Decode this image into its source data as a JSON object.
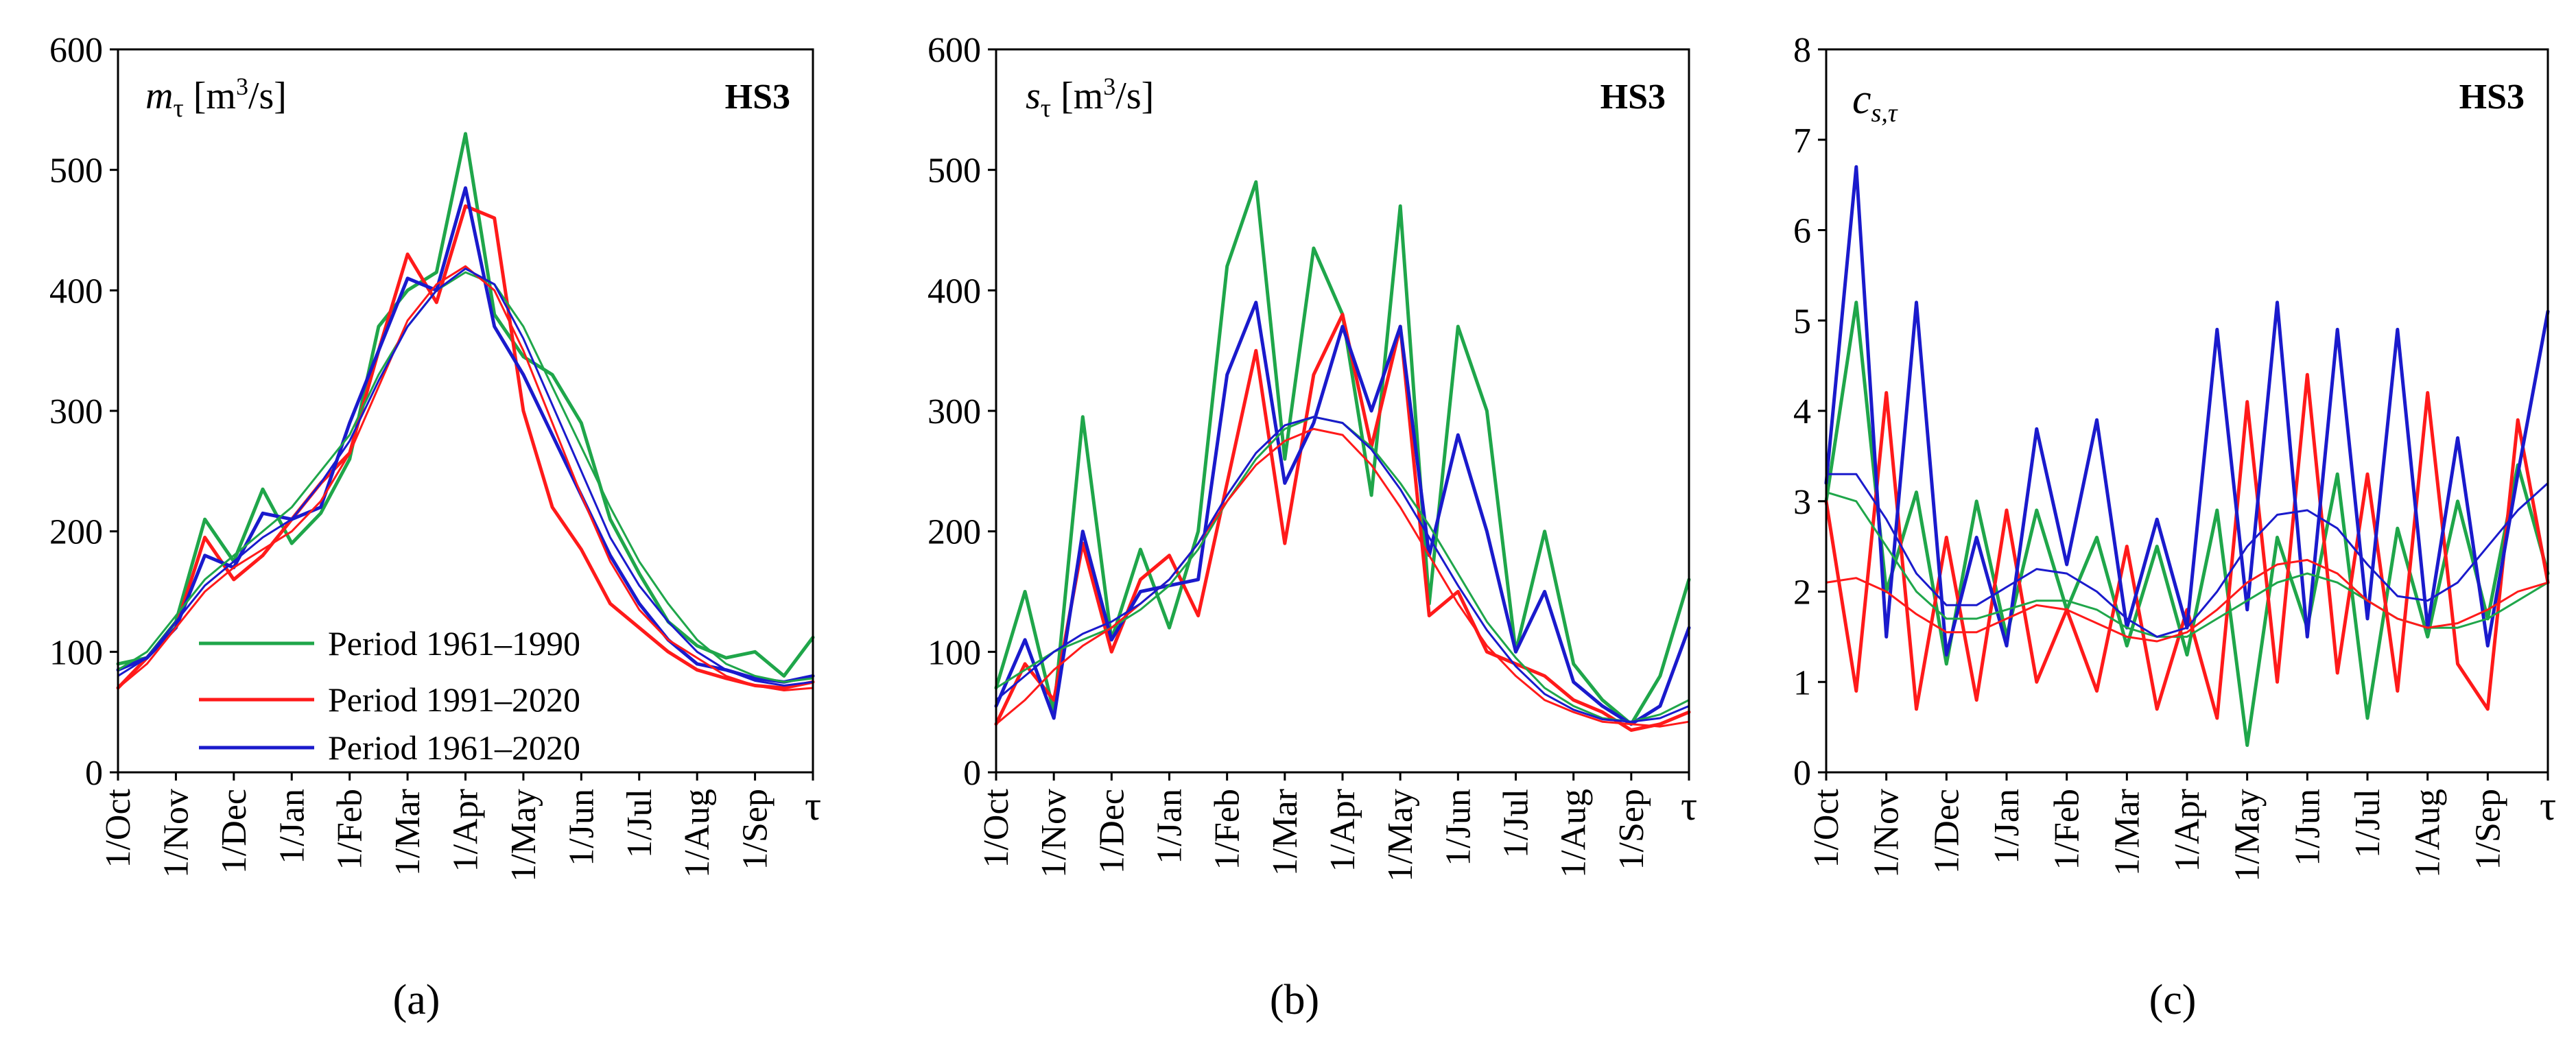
{
  "figure": {
    "captions": [
      "(a)",
      "(b)",
      "(c)"
    ],
    "legend": [
      {
        "label": "Period 1961–1990",
        "color": "#1fa64a"
      },
      {
        "label": "Period 1991–2020",
        "color": "#ff1a1a"
      },
      {
        "label": "Period 1961–2020",
        "color": "#1a1acc"
      }
    ]
  },
  "chart_data": [
    {
      "type": "line",
      "panel": "a",
      "title": "HS3",
      "ylabel_symbol": "m",
      "ylabel_sub": "τ",
      "ylabel_unit_pre": "[m",
      "ylabel_unit_sup": "3",
      "ylabel_unit_post": "/s]",
      "xlabel": "τ",
      "ylim": [
        0,
        600
      ],
      "yticks": [
        "0",
        "100",
        "200",
        "300",
        "400",
        "500",
        "600"
      ],
      "xticks": [
        "1/Oct",
        "1/Nov",
        "1/Dec",
        "1/Jan",
        "1/Feb",
        "1/Mar",
        "1/Apr",
        "1/May",
        "1/Jun",
        "1/Jul",
        "1/Aug",
        "1/Sep"
      ],
      "x": [
        0,
        0.5,
        1,
        1.5,
        2,
        2.5,
        3,
        3.5,
        4,
        4.5,
        5,
        5.5,
        6,
        6.5,
        7,
        7.5,
        8,
        8.5,
        9,
        9.5,
        10,
        10.5,
        11,
        11.5,
        12
      ],
      "series": [
        {
          "name": "Period 1961–1990",
          "kind": "empirical",
          "color": "#1fa64a",
          "values": [
            90,
            95,
            125,
            210,
            175,
            235,
            190,
            215,
            260,
            370,
            400,
            415,
            530,
            380,
            345,
            330,
            290,
            210,
            165,
            125,
            105,
            95,
            100,
            80,
            112
          ]
        },
        {
          "name": "Period 1991–2020",
          "kind": "empirical",
          "color": "#ff1a1a",
          "values": [
            70,
            95,
            120,
            195,
            160,
            180,
            210,
            240,
            265,
            350,
            430,
            390,
            470,
            460,
            300,
            220,
            185,
            140,
            120,
            100,
            85,
            78,
            72,
            70,
            75
          ]
        },
        {
          "name": "Period 1961–2020",
          "kind": "empirical",
          "color": "#1a1acc",
          "values": [
            85,
            95,
            120,
            180,
            170,
            215,
            210,
            220,
            290,
            350,
            410,
            400,
            485,
            370,
            330,
            280,
            230,
            180,
            140,
            110,
            90,
            85,
            78,
            75,
            80
          ]
        },
        {
          "name": "Period 1961–1990 (fitted)",
          "kind": "fitted",
          "color": "#1fa64a",
          "values": [
            85,
            100,
            130,
            160,
            180,
            200,
            220,
            250,
            280,
            330,
            370,
            400,
            415,
            405,
            370,
            320,
            270,
            220,
            175,
            140,
            110,
            90,
            80,
            75,
            78
          ]
        },
        {
          "name": "Period 1991–2020 (fitted)",
          "kind": "fitted",
          "color": "#ff1a1a",
          "values": [
            70,
            90,
            120,
            150,
            170,
            185,
            200,
            225,
            265,
            320,
            375,
            405,
            420,
            400,
            350,
            290,
            230,
            175,
            135,
            110,
            95,
            80,
            72,
            68,
            70
          ]
        },
        {
          "name": "Period 1961–2020 (fitted)",
          "kind": "fitted",
          "color": "#1a1acc",
          "values": [
            80,
            95,
            125,
            155,
            175,
            195,
            210,
            240,
            275,
            325,
            370,
            400,
            418,
            405,
            360,
            305,
            250,
            195,
            155,
            125,
            100,
            85,
            76,
            72,
            75
          ]
        }
      ]
    },
    {
      "type": "line",
      "panel": "b",
      "title": "HS3",
      "ylabel_symbol": "s",
      "ylabel_sub": "τ",
      "ylabel_unit_pre": "[m",
      "ylabel_unit_sup": "3",
      "ylabel_unit_post": "/s]",
      "xlabel": "τ",
      "ylim": [
        0,
        600
      ],
      "yticks": [
        "0",
        "100",
        "200",
        "300",
        "400",
        "500",
        "600"
      ],
      "xticks": [
        "1/Oct",
        "1/Nov",
        "1/Dec",
        "1/Jan",
        "1/Feb",
        "1/Mar",
        "1/Apr",
        "1/May",
        "1/Jun",
        "1/Jul",
        "1/Aug",
        "1/Sep"
      ],
      "x": [
        0,
        0.5,
        1,
        1.5,
        2,
        2.5,
        3,
        3.5,
        4,
        4.5,
        5,
        5.5,
        6,
        6.5,
        7,
        7.5,
        8,
        8.5,
        9,
        9.5,
        10,
        10.5,
        11,
        11.5,
        12
      ],
      "series": [
        {
          "name": "Period 1961–1990",
          "kind": "empirical",
          "color": "#1fa64a",
          "values": [
            70,
            150,
            50,
            295,
            110,
            185,
            120,
            200,
            420,
            490,
            260,
            435,
            380,
            230,
            470,
            140,
            370,
            300,
            100,
            200,
            90,
            60,
            40,
            80,
            160
          ]
        },
        {
          "name": "Period 1991–2020",
          "kind": "empirical",
          "color": "#ff1a1a",
          "values": [
            40,
            90,
            60,
            190,
            100,
            160,
            180,
            130,
            240,
            350,
            190,
            330,
            380,
            270,
            370,
            130,
            150,
            100,
            90,
            80,
            60,
            50,
            35,
            40,
            50
          ]
        },
        {
          "name": "Period 1961–2020",
          "kind": "empirical",
          "color": "#1a1acc",
          "values": [
            55,
            110,
            45,
            200,
            110,
            150,
            155,
            160,
            330,
            390,
            240,
            290,
            370,
            300,
            370,
            180,
            280,
            200,
            100,
            150,
            75,
            55,
            40,
            55,
            120
          ]
        },
        {
          "name": "Period 1961–1990 (fitted)",
          "kind": "fitted",
          "color": "#1fa64a",
          "values": [
            70,
            85,
            100,
            110,
            120,
            135,
            155,
            185,
            225,
            260,
            285,
            295,
            290,
            270,
            240,
            205,
            165,
            125,
            95,
            70,
            55,
            45,
            42,
            48,
            60
          ]
        },
        {
          "name": "Period 1991–2020 (fitted)",
          "kind": "fitted",
          "color": "#ff1a1a",
          "values": [
            40,
            60,
            85,
            105,
            120,
            140,
            160,
            190,
            225,
            255,
            275,
            285,
            280,
            255,
            220,
            180,
            140,
            105,
            80,
            60,
            50,
            42,
            40,
            38,
            42
          ]
        },
        {
          "name": "Period 1961–2020 (fitted)",
          "kind": "fitted",
          "color": "#1a1acc",
          "values": [
            60,
            80,
            100,
            115,
            125,
            140,
            160,
            190,
            230,
            265,
            288,
            295,
            290,
            268,
            235,
            195,
            155,
            118,
            88,
            65,
            52,
            44,
            42,
            45,
            55
          ]
        }
      ]
    },
    {
      "type": "line",
      "panel": "c",
      "title": "HS3",
      "ylabel_symbol": "c",
      "ylabel_sub": "s,τ",
      "ylabel_unit_pre": "",
      "ylabel_unit_sup": "",
      "ylabel_unit_post": "",
      "xlabel": "τ",
      "ylim": [
        0,
        8
      ],
      "yticks": [
        "0",
        "1",
        "2",
        "3",
        "4",
        "5",
        "6",
        "7",
        "8"
      ],
      "xticks": [
        "1/Oct",
        "1/Nov",
        "1/Dec",
        "1/Jan",
        "1/Feb",
        "1/Mar",
        "1/Apr",
        "1/May",
        "1/Jun",
        "1/Jul",
        "1/Aug",
        "1/Sep"
      ],
      "x": [
        0,
        0.5,
        1,
        1.5,
        2,
        2.5,
        3,
        3.5,
        4,
        4.5,
        5,
        5.5,
        6,
        6.5,
        7,
        7.5,
        8,
        8.5,
        9,
        9.5,
        10,
        10.5,
        11,
        11.5,
        12
      ],
      "series": [
        {
          "name": "Period 1961–1990",
          "kind": "empirical",
          "color": "#1fa64a",
          "values": [
            3.0,
            5.2,
            2.0,
            3.1,
            1.2,
            3.0,
            1.5,
            2.9,
            1.8,
            2.6,
            1.4,
            2.5,
            1.3,
            2.9,
            0.3,
            2.6,
            1.6,
            3.3,
            0.6,
            2.7,
            1.5,
            3.0,
            1.7,
            3.4,
            2.2
          ]
        },
        {
          "name": "Period 1991–2020",
          "kind": "empirical",
          "color": "#ff1a1a",
          "values": [
            3.0,
            0.9,
            4.2,
            0.7,
            2.6,
            0.8,
            2.9,
            1.0,
            1.8,
            0.9,
            2.5,
            0.7,
            1.8,
            0.6,
            4.1,
            1.0,
            4.4,
            1.1,
            3.3,
            0.9,
            4.2,
            1.2,
            0.7,
            3.9,
            2.1
          ]
        },
        {
          "name": "Period 1961–2020",
          "kind": "empirical",
          "color": "#1a1acc",
          "values": [
            3.2,
            6.7,
            1.5,
            5.2,
            1.3,
            2.6,
            1.4,
            3.8,
            2.3,
            3.9,
            1.6,
            2.8,
            1.6,
            4.9,
            1.8,
            5.2,
            1.5,
            4.9,
            1.7,
            4.9,
            1.6,
            3.7,
            1.4,
            3.3,
            5.1
          ]
        },
        {
          "name": "Period 1961–1990 (fitted)",
          "kind": "fitted",
          "color": "#1fa64a",
          "values": [
            3.1,
            3.0,
            2.5,
            2.0,
            1.7,
            1.7,
            1.8,
            1.9,
            1.9,
            1.8,
            1.6,
            1.5,
            1.5,
            1.7,
            1.9,
            2.1,
            2.2,
            2.1,
            1.9,
            1.7,
            1.6,
            1.6,
            1.7,
            1.9,
            2.1
          ]
        },
        {
          "name": "Period 1991–2020 (fitted)",
          "kind": "fitted",
          "color": "#ff1a1a",
          "values": [
            2.1,
            2.15,
            2.0,
            1.75,
            1.55,
            1.55,
            1.7,
            1.85,
            1.8,
            1.65,
            1.5,
            1.45,
            1.55,
            1.8,
            2.1,
            2.3,
            2.35,
            2.2,
            1.9,
            1.7,
            1.6,
            1.65,
            1.8,
            2.0,
            2.1
          ]
        },
        {
          "name": "Period 1961–2020 (fitted)",
          "kind": "fitted",
          "color": "#1a1acc",
          "values": [
            3.3,
            3.3,
            2.8,
            2.2,
            1.85,
            1.85,
            2.05,
            2.25,
            2.2,
            2.0,
            1.7,
            1.5,
            1.6,
            2.0,
            2.5,
            2.85,
            2.9,
            2.7,
            2.3,
            1.95,
            1.9,
            2.1,
            2.5,
            2.9,
            3.2
          ]
        }
      ]
    }
  ]
}
